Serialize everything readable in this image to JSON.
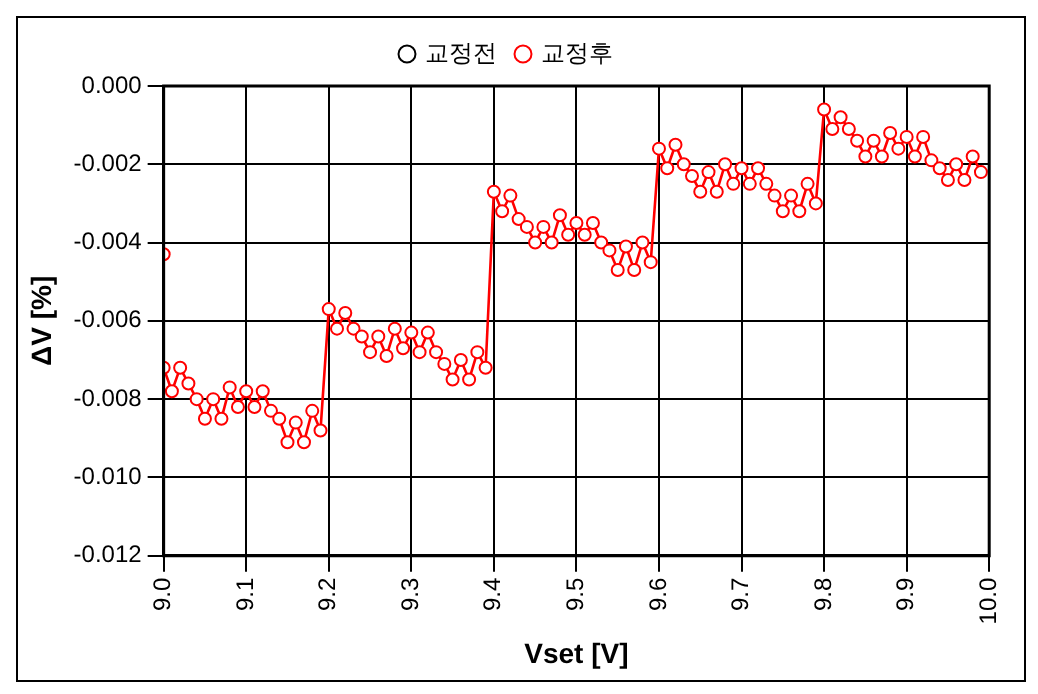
{
  "chart_data": {
    "type": "line",
    "xlabel": "Vset [V]",
    "ylabel": "ΔV [%]",
    "x": [
      9.0,
      9.0,
      9.01,
      9.02,
      9.03,
      9.04,
      9.05,
      9.06,
      9.07,
      9.08,
      9.09,
      9.1,
      9.11,
      9.12,
      9.13,
      9.14,
      9.15,
      9.16,
      9.17,
      9.18,
      9.19,
      9.2,
      9.21,
      9.22,
      9.23,
      9.24,
      9.25,
      9.26,
      9.27,
      9.28,
      9.29,
      9.3,
      9.31,
      9.32,
      9.33,
      9.34,
      9.35,
      9.36,
      9.37,
      9.38,
      9.39,
      9.4,
      9.41,
      9.42,
      9.43,
      9.44,
      9.45,
      9.46,
      9.47,
      9.48,
      9.49,
      9.5,
      9.51,
      9.52,
      9.53,
      9.54,
      9.55,
      9.56,
      9.57,
      9.58,
      9.59,
      9.6,
      9.61,
      9.62,
      9.63,
      9.64,
      9.65,
      9.66,
      9.67,
      9.68,
      9.69,
      9.7,
      9.71,
      9.72,
      9.73,
      9.74,
      9.75,
      9.76,
      9.77,
      9.78,
      9.79,
      9.8,
      9.81,
      9.82,
      9.83,
      9.84,
      9.85,
      9.86,
      9.87,
      9.88,
      9.89,
      9.9,
      9.91,
      9.92,
      9.93,
      9.94,
      9.95,
      9.96,
      9.97,
      9.98,
      9.99
    ],
    "series": [
      {
        "name": "교정전",
        "color": "#000000",
        "values": [
          null,
          null,
          null,
          null,
          null,
          null,
          null,
          null,
          null,
          null,
          null,
          null,
          null,
          null,
          null,
          null,
          null,
          null,
          null,
          null,
          null,
          null,
          null,
          null,
          null,
          null,
          null,
          null,
          null,
          null,
          null,
          null,
          null,
          null,
          null,
          null,
          null,
          null,
          null,
          null,
          null,
          null,
          null,
          null,
          null,
          null,
          null,
          null,
          null,
          null,
          null,
          null,
          null,
          null,
          null,
          null,
          null,
          null,
          null,
          null,
          null,
          null,
          null,
          null,
          null,
          null,
          null,
          null,
          null,
          null,
          null,
          null,
          null,
          null,
          null,
          null,
          null,
          null,
          null,
          null,
          null,
          null,
          null,
          null,
          null,
          null,
          null,
          null,
          null,
          null,
          null,
          null,
          null,
          null,
          null,
          null,
          null,
          null,
          null,
          null,
          null
        ]
      },
      {
        "name": "교정후",
        "color": "#ff0000",
        "values": [
          -0.0043,
          -0.0072,
          -0.0078,
          -0.0072,
          -0.0076,
          -0.008,
          -0.0085,
          -0.008,
          -0.0085,
          -0.0077,
          -0.0082,
          -0.0078,
          -0.0082,
          -0.0078,
          -0.0083,
          -0.0085,
          -0.0091,
          -0.0086,
          -0.0091,
          -0.0083,
          -0.0088,
          -0.0057,
          -0.0062,
          -0.0058,
          -0.0062,
          -0.0064,
          -0.0068,
          -0.0064,
          -0.0069,
          -0.0062,
          -0.0067,
          -0.0063,
          -0.0068,
          -0.0063,
          -0.0068,
          -0.0071,
          -0.0075,
          -0.007,
          -0.0075,
          -0.0068,
          -0.0072,
          -0.0027,
          -0.0032,
          -0.0028,
          -0.0034,
          -0.0036,
          -0.004,
          -0.0036,
          -0.004,
          -0.0033,
          -0.0038,
          -0.0035,
          -0.0038,
          -0.0035,
          -0.004,
          -0.0042,
          -0.0047,
          -0.0041,
          -0.0047,
          -0.004,
          -0.0045,
          -0.0016,
          -0.0021,
          -0.0015,
          -0.002,
          -0.0023,
          -0.0027,
          -0.0022,
          -0.0027,
          -0.002,
          -0.0025,
          -0.0021,
          -0.0025,
          -0.0021,
          -0.0025,
          -0.0028,
          -0.0032,
          -0.0028,
          -0.0032,
          -0.0025,
          -0.003,
          -0.0006,
          -0.0011,
          -0.0008,
          -0.0011,
          -0.0014,
          -0.0018,
          -0.0014,
          -0.0018,
          -0.0012,
          -0.0016,
          -0.0013,
          -0.0018,
          -0.0013,
          -0.0019,
          -0.0021,
          -0.0024,
          -0.002,
          -0.0024,
          -0.0018,
          -0.0022
        ]
      }
    ],
    "xlim": [
      9.0,
      10.0
    ],
    "xticks": [
      {
        "value": 9.0,
        "label": "9.0"
      },
      {
        "value": 9.1,
        "label": "9.1"
      },
      {
        "value": 9.2,
        "label": "9.2"
      },
      {
        "value": 9.3,
        "label": "9.3"
      },
      {
        "value": 9.4,
        "label": "9.4"
      },
      {
        "value": 9.5,
        "label": "9.5"
      },
      {
        "value": 9.6,
        "label": "9.6"
      },
      {
        "value": 9.7,
        "label": "9.7"
      },
      {
        "value": 9.8,
        "label": "9.8"
      },
      {
        "value": 9.9,
        "label": "9.9"
      },
      {
        "value": 10.0,
        "label": "10.0"
      }
    ],
    "ylim": [
      -0.012,
      0.0
    ],
    "yticks": [
      {
        "value": -0.012,
        "label": "-0.012"
      },
      {
        "value": -0.01,
        "label": "-0.010"
      },
      {
        "value": -0.008,
        "label": "-0.008"
      },
      {
        "value": -0.006,
        "label": "-0.006"
      },
      {
        "value": -0.004,
        "label": "-0.004"
      },
      {
        "value": -0.002,
        "label": "-0.002"
      },
      {
        "value": 0.0,
        "label": "0.000"
      }
    ],
    "grid": true,
    "legend": "top",
    "marker": "circle",
    "line_style": "solid"
  }
}
